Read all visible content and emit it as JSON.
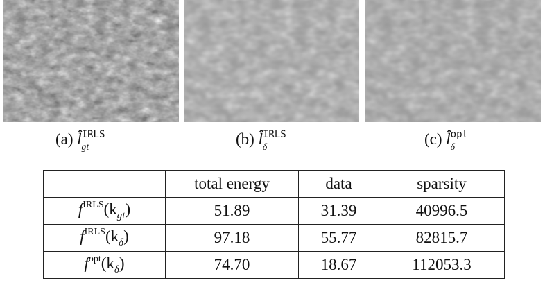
{
  "figures": [
    {
      "label": "(a)",
      "symbol": "l̂",
      "superscript": "IRLS",
      "subscript": "gt"
    },
    {
      "label": "(b)",
      "symbol": "l̂",
      "superscript": "IRLS",
      "subscript": "δ"
    },
    {
      "label": "(c)",
      "symbol": "l̂",
      "superscript": "opt",
      "subscript": "δ"
    }
  ],
  "table": {
    "header": [
      "total energy",
      "data",
      "sparsity"
    ],
    "rows": [
      {
        "label": {
          "base": "f",
          "superscript": "IRLS",
          "argument": "(k",
          "subscript": "gt",
          "close": ")"
        },
        "cells": [
          "51.89",
          "31.39",
          "40996.5"
        ]
      },
      {
        "label": {
          "base": "f",
          "superscript": "IRLS",
          "argument": "(k",
          "subscript": "δ",
          "close": ")"
        },
        "cells": [
          "97.18",
          "55.77",
          "82815.7"
        ]
      },
      {
        "label": {
          "base": "f",
          "superscript": "opt",
          "argument": "(k",
          "subscript": "δ",
          "close": ")"
        },
        "cells": [
          "74.70",
          "18.67",
          "112053.3"
        ]
      }
    ]
  }
}
